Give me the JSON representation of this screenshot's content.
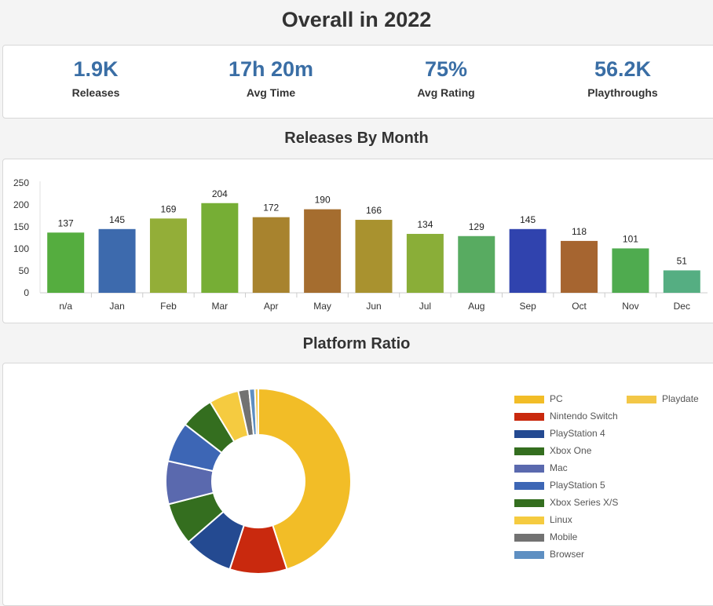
{
  "page": {
    "title": "Overall in 2022"
  },
  "stats": [
    {
      "value": "1.9K",
      "label": "Releases"
    },
    {
      "value": "17h 20m",
      "label": "Avg Time"
    },
    {
      "value": "75%",
      "label": "Avg Rating"
    },
    {
      "value": "56.2K",
      "label": "Playthroughs"
    }
  ],
  "sections": {
    "releases_title": "Releases By Month",
    "platform_title": "Platform Ratio"
  },
  "chart_data": [
    {
      "type": "bar",
      "title": "Releases By Month",
      "categories": [
        "n/a",
        "Jan",
        "Feb",
        "Mar",
        "Apr",
        "May",
        "Jun",
        "Jul",
        "Aug",
        "Sep",
        "Oct",
        "Nov",
        "Dec"
      ],
      "values": [
        137,
        145,
        169,
        204,
        172,
        190,
        166,
        134,
        129,
        145,
        118,
        101,
        51
      ],
      "colors": [
        "#55ad3f",
        "#3d6aad",
        "#93ae38",
        "#76ae35",
        "#a8832e",
        "#a56d2f",
        "#a9922f",
        "#8aae38",
        "#58ab61",
        "#3043ae",
        "#a66530",
        "#4fab4f",
        "#55ae82"
      ],
      "ylim": [
        0,
        250
      ],
      "yticks": [
        0,
        50,
        100,
        150,
        200,
        250
      ],
      "xlabel": "",
      "ylabel": "",
      "grid": false
    },
    {
      "type": "pie",
      "title": "Platform Ratio",
      "labels": [
        "PC",
        "Nintendo Switch",
        "PlayStation 4",
        "Xbox One",
        "Mac",
        "PlayStation 5",
        "Xbox Series X/S",
        "Linux",
        "Mobile",
        "Browser",
        "Playdate"
      ],
      "values": [
        45.0,
        10.0,
        8.6,
        7.4,
        7.5,
        7.0,
        5.8,
        5.2,
        1.9,
        1.0,
        0.6
      ],
      "colors": [
        "#f2bd27",
        "#c9290e",
        "#244a91",
        "#346e1f",
        "#5a69ae",
        "#3d66b5",
        "#346e1f",
        "#f5cb40",
        "#727272",
        "#5e8fc2",
        "#f3c747"
      ],
      "legend": "right"
    }
  ]
}
